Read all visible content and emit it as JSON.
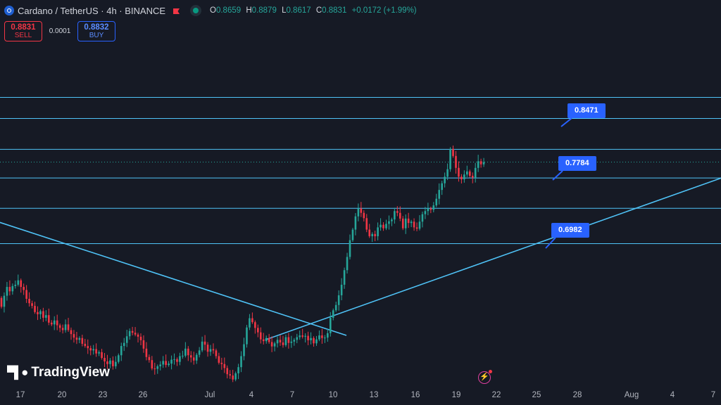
{
  "header": {
    "title": "Cardano / TetherUS · 4h · BINANCE",
    "ohlc": [
      {
        "k": "O",
        "v": "0.8659"
      },
      {
        "k": "H",
        "v": "0.8879"
      },
      {
        "k": "L",
        "v": "0.8617"
      },
      {
        "k": "C",
        "v": "0.8831"
      },
      {
        "k": "",
        "v": "+0.0172 (+1.99%)"
      }
    ]
  },
  "trade": {
    "sell_price": "0.8831",
    "sell_label": "SELL",
    "spread": "0.0001",
    "buy_price": "0.8832",
    "buy_label": "BUY"
  },
  "branding": {
    "logo_text": "TradingView"
  },
  "icons": [
    "cardano-symbol-icon",
    "flag-icon",
    "eye-icon",
    "tradingview-logo-icon",
    "flash-icon"
  ],
  "colors": {
    "background": "#161a25",
    "up": "#26a69a",
    "down": "#f23645",
    "lines": "#4fc3f7",
    "tag": "#2962ff"
  },
  "chart_data": {
    "type": "candlestick",
    "symbol": "ADAUSDT",
    "interval": "4h",
    "x_tick_labels": [
      "17",
      "20",
      "23",
      "26",
      "Jul",
      "4",
      "7",
      "10",
      "13",
      "16",
      "19",
      "22",
      "25",
      "28",
      "Aug",
      "4",
      "7"
    ],
    "ylim": [
      0.38,
      1.05
    ],
    "last_price": 0.8831,
    "horizontal_levels": [
      1.03,
      0.9821,
      0.9121,
      0.8471,
      0.7784,
      0.6982
    ],
    "price_tags": [
      "0.8471",
      "0.7784",
      "0.6982"
    ],
    "trendlines": [
      {
        "name": "descending",
        "points": [
          [
            "Jun 15",
            0.75
          ],
          [
            "Jul 11",
            0.49
          ]
        ]
      },
      {
        "name": "ascending",
        "points": [
          [
            "Jul 5",
            0.48
          ],
          [
            "Aug 8",
            0.85
          ]
        ]
      }
    ],
    "close_series": [
      0.555,
      0.58,
      0.6,
      0.59,
      0.602,
      0.605,
      0.615,
      0.6,
      0.593,
      0.573,
      0.563,
      0.557,
      0.543,
      0.538,
      0.545,
      0.53,
      0.536,
      0.519,
      0.515,
      0.524,
      0.513,
      0.507,
      0.502,
      0.515,
      0.502,
      0.493,
      0.485,
      0.48,
      0.484,
      0.471,
      0.466,
      0.461,
      0.456,
      0.459,
      0.449,
      0.452,
      0.439,
      0.431,
      0.425,
      0.433,
      0.42,
      0.43,
      0.445,
      0.466,
      0.473,
      0.488,
      0.5,
      0.496,
      0.492,
      0.487,
      0.479,
      0.46,
      0.441,
      0.434,
      0.415,
      0.414,
      0.42,
      0.424,
      0.432,
      0.423,
      0.426,
      0.435,
      0.436,
      0.43,
      0.443,
      0.444,
      0.46,
      0.445,
      0.44,
      0.433,
      0.446,
      0.456,
      0.476,
      0.469,
      0.453,
      0.459,
      0.456,
      0.443,
      0.428,
      0.425,
      0.416,
      0.402,
      0.399,
      0.39,
      0.404,
      0.418,
      0.443,
      0.47,
      0.508,
      0.529,
      0.52,
      0.507,
      0.497,
      0.481,
      0.477,
      0.484,
      0.475,
      0.465,
      0.472,
      0.48,
      0.474,
      0.468,
      0.486,
      0.473,
      0.476,
      0.48,
      0.486,
      0.49,
      0.487,
      0.489,
      0.479,
      0.484,
      0.472,
      0.481,
      0.49,
      0.484,
      0.485,
      0.495,
      0.53,
      0.547,
      0.559,
      0.581,
      0.605,
      0.638,
      0.668,
      0.706,
      0.73,
      0.76,
      0.778,
      0.768,
      0.756,
      0.73,
      0.715,
      0.72,
      0.715,
      0.735,
      0.741,
      0.733,
      0.743,
      0.749,
      0.753,
      0.772,
      0.768,
      0.755,
      0.733,
      0.755,
      0.745,
      0.748,
      0.735,
      0.732,
      0.748,
      0.765,
      0.772,
      0.778,
      0.775,
      0.785,
      0.8,
      0.82,
      0.835,
      0.85,
      0.867,
      0.913,
      0.897,
      0.87,
      0.85,
      0.844,
      0.855,
      0.862,
      0.852,
      0.848,
      0.87,
      0.885,
      0.878,
      0.8831
    ]
  }
}
